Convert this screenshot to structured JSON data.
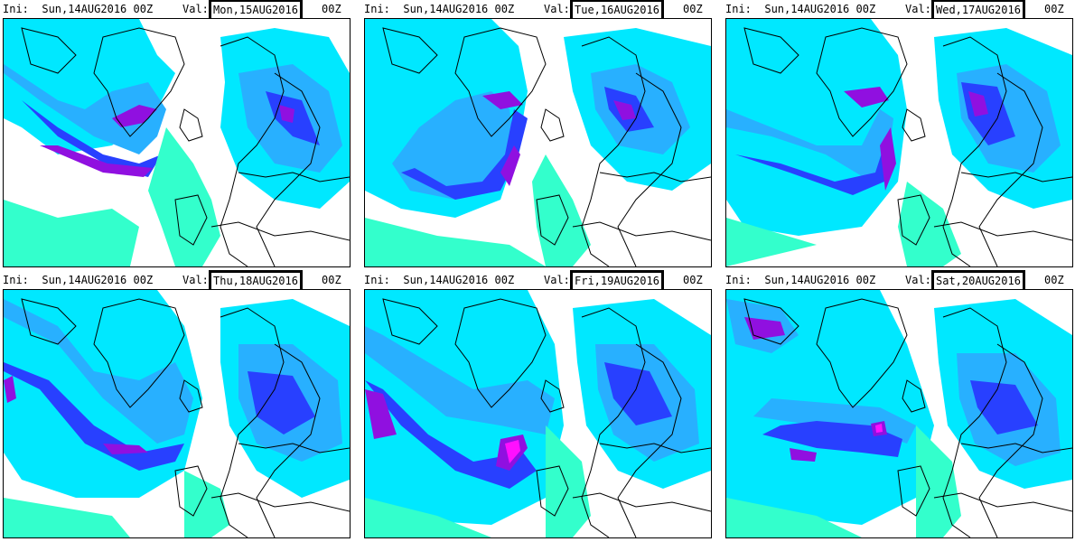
{
  "panels": [
    {
      "ini_label": "Ini:",
      "ini_value": "Sun,14AUG2016 00Z",
      "val_label": "Val:",
      "val_value": "Mon,15AUG2016",
      "val_suffix": "00Z"
    },
    {
      "ini_label": "Ini:",
      "ini_value": "Sun,14AUG2016 00Z",
      "val_label": "Val:",
      "val_value": "Tue,16AUG2016",
      "val_suffix": "00Z"
    },
    {
      "ini_label": "Ini:",
      "ini_value": "Sun,14AUG2016 00Z",
      "val_label": "Val:",
      "val_value": "Wed,17AUG2016",
      "val_suffix": "00Z"
    },
    {
      "ini_label": "Ini:",
      "ini_value": "Sun,14AUG2016 00Z",
      "val_label": "Val:",
      "val_value": "Thu,18AUG2016",
      "val_suffix": "00Z"
    },
    {
      "ini_label": "Ini:",
      "ini_value": "Sun,14AUG2016 00Z",
      "val_label": "Val:",
      "val_value": "Fri,19AUG2016",
      "val_suffix": "00Z"
    },
    {
      "ini_label": "Ini:",
      "ini_value": "Sun,14AUG2016 00Z",
      "val_label": "Val:",
      "val_value": "Sat,20AUG2016",
      "val_suffix": "00Z"
    }
  ],
  "colors": {
    "background": "#ffffff",
    "light_cyan": "#33ffcc",
    "cyan": "#00e8ff",
    "sky_blue": "#28b0ff",
    "blue": "#2840ff",
    "purple": "#9010e0",
    "magenta": "#ff10ff",
    "coastline": "#000000"
  }
}
